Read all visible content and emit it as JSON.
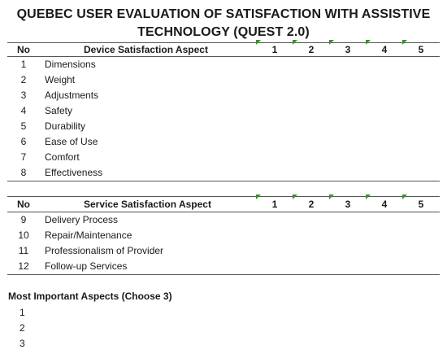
{
  "title": {
    "line1": "QUEBEC USER EVALUATION OF SATISFACTION WITH ASSISTIVE",
    "line2": "TECHNOLOGY (QUEST 2.0)"
  },
  "device_section": {
    "header": {
      "no": "No",
      "aspect": "Device Satisfaction Aspect",
      "ratings": [
        "1",
        "2",
        "3",
        "4",
        "5"
      ]
    },
    "items": [
      {
        "no": "1",
        "label": "Dimensions"
      },
      {
        "no": "2",
        "label": "Weight"
      },
      {
        "no": "3",
        "label": "Adjustments"
      },
      {
        "no": "4",
        "label": "Safety"
      },
      {
        "no": "5",
        "label": "Durability"
      },
      {
        "no": "6",
        "label": "Ease of Use"
      },
      {
        "no": "7",
        "label": "Comfort"
      },
      {
        "no": "8",
        "label": "Effectiveness"
      }
    ]
  },
  "service_section": {
    "header": {
      "no": "No",
      "aspect": "Service Satisfaction Aspect",
      "ratings": [
        "1",
        "2",
        "3",
        "4",
        "5"
      ]
    },
    "items": [
      {
        "no": "9",
        "label": "Delivery Process"
      },
      {
        "no": "10",
        "label": "Repair/Maintenance"
      },
      {
        "no": "11",
        "label": "Professionalism of Provider"
      },
      {
        "no": "12",
        "label": "Follow-up Services"
      }
    ]
  },
  "most_important": {
    "heading": "Most Important Aspects (Choose 3)",
    "items": [
      "1",
      "2",
      "3"
    ]
  },
  "colors": {
    "tick_marker": "#3a8f2f",
    "rule": "#555555"
  }
}
